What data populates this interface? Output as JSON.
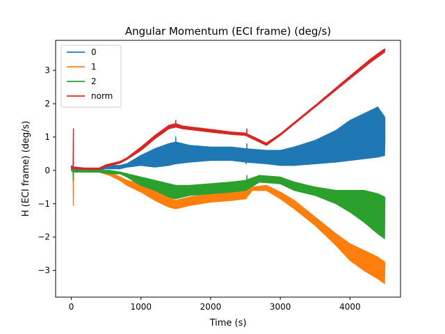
{
  "chart_data": {
    "type": "line",
    "title": "Angular Momentum (ECI frame) (deg/s)",
    "xlabel": "Time (s)",
    "ylabel": "H (ECI frame) (deg/s)",
    "xlim": [
      -225,
      4725
    ],
    "ylim": [
      -3.8,
      3.9
    ],
    "xticks": [
      0,
      1000,
      2000,
      3000,
      4000
    ],
    "yticks": [
      -3,
      -2,
      -1,
      0,
      1,
      2,
      3
    ],
    "xtick_labels": [
      "0",
      "1000",
      "2000",
      "3000",
      "4000"
    ],
    "ytick_labels": [
      "−3",
      "−2",
      "−1",
      "0",
      "1",
      "2",
      "3"
    ],
    "grid": false,
    "legend_position": "upper-left",
    "series": [
      {
        "name": "0",
        "color": "#1f77b4",
        "envelope": [
          [
            0,
            0.05,
            0.1
          ],
          [
            30,
            0.0,
            0.05
          ],
          [
            200,
            0.0,
            0.05
          ],
          [
            380,
            0.0,
            0.05
          ],
          [
            500,
            0.05,
            0.15
          ],
          [
            700,
            0.05,
            0.15
          ],
          [
            800,
            0.1,
            0.2
          ],
          [
            1000,
            0.15,
            0.45
          ],
          [
            1200,
            0.1,
            0.65
          ],
          [
            1400,
            0.15,
            0.8
          ],
          [
            1500,
            0.2,
            0.85
          ],
          [
            1700,
            0.25,
            0.75
          ],
          [
            2000,
            0.3,
            0.7
          ],
          [
            2300,
            0.3,
            0.7
          ],
          [
            2500,
            0.25,
            0.65
          ],
          [
            2800,
            0.2,
            0.6
          ],
          [
            3000,
            0.15,
            0.6
          ],
          [
            3200,
            0.15,
            0.7
          ],
          [
            3500,
            0.2,
            0.9
          ],
          [
            3800,
            0.25,
            1.2
          ],
          [
            4000,
            0.3,
            1.5
          ],
          [
            4200,
            0.35,
            1.7
          ],
          [
            4400,
            0.4,
            1.9
          ],
          [
            4500,
            0.45,
            1.6
          ]
        ],
        "spikes": [
          [
            1500,
            1.0
          ],
          [
            2510,
            0.2
          ],
          [
            2520,
            0.8
          ],
          [
            4500,
            0.95
          ]
        ]
      },
      {
        "name": "1",
        "color": "#ff7f0e",
        "envelope": [
          [
            0,
            0.0,
            0.05
          ],
          [
            30,
            -0.05,
            0.0
          ],
          [
            200,
            -0.05,
            0.0
          ],
          [
            400,
            -0.05,
            0.0
          ],
          [
            550,
            -0.15,
            -0.05
          ],
          [
            700,
            -0.3,
            -0.2
          ],
          [
            800,
            -0.45,
            -0.3
          ],
          [
            1000,
            -0.65,
            -0.4
          ],
          [
            1200,
            -0.9,
            -0.6
          ],
          [
            1400,
            -1.1,
            -0.8
          ],
          [
            1500,
            -1.15,
            -0.9
          ],
          [
            1700,
            -1.05,
            -0.8
          ],
          [
            2000,
            -0.95,
            -0.7
          ],
          [
            2300,
            -0.9,
            -0.65
          ],
          [
            2500,
            -0.85,
            -0.6
          ],
          [
            2600,
            -0.6,
            -0.5
          ],
          [
            2800,
            -0.6,
            -0.45
          ],
          [
            3000,
            -0.85,
            -0.65
          ],
          [
            3200,
            -1.15,
            -0.9
          ],
          [
            3500,
            -1.65,
            -1.4
          ],
          [
            3800,
            -2.25,
            -1.9
          ],
          [
            4000,
            -2.7,
            -2.2
          ],
          [
            4200,
            -3.0,
            -2.4
          ],
          [
            4400,
            -3.25,
            -2.6
          ],
          [
            4500,
            -3.4,
            -2.75
          ]
        ],
        "spikes": [
          [
            30,
            -1.05
          ],
          [
            2510,
            -0.85
          ],
          [
            2520,
            -0.25
          ]
        ]
      },
      {
        "name": "2",
        "color": "#2ca02c",
        "envelope": [
          [
            0,
            0.0,
            0.05
          ],
          [
            30,
            -0.05,
            0.0
          ],
          [
            200,
            -0.05,
            0.0
          ],
          [
            400,
            -0.05,
            0.0
          ],
          [
            550,
            -0.1,
            0.0
          ],
          [
            700,
            -0.1,
            -0.05
          ],
          [
            800,
            -0.2,
            -0.1
          ],
          [
            1000,
            -0.45,
            -0.2
          ],
          [
            1200,
            -0.6,
            -0.3
          ],
          [
            1400,
            -0.8,
            -0.4
          ],
          [
            1500,
            -0.85,
            -0.45
          ],
          [
            1700,
            -0.75,
            -0.45
          ],
          [
            2000,
            -0.7,
            -0.4
          ],
          [
            2300,
            -0.65,
            -0.35
          ],
          [
            2500,
            -0.6,
            -0.3
          ],
          [
            2700,
            -0.35,
            -0.15
          ],
          [
            3000,
            -0.4,
            -0.2
          ],
          [
            3200,
            -0.6,
            -0.35
          ],
          [
            3500,
            -0.75,
            -0.5
          ],
          [
            3800,
            -1.0,
            -0.6
          ],
          [
            4000,
            -1.25,
            -0.6
          ],
          [
            4200,
            -1.55,
            -0.6
          ],
          [
            4400,
            -1.9,
            -0.7
          ],
          [
            4500,
            -2.05,
            -0.8
          ]
        ],
        "spikes": [
          [
            30,
            -0.3
          ],
          [
            2510,
            -0.6
          ],
          [
            2520,
            -0.15
          ]
        ]
      },
      {
        "name": "norm",
        "color": "#d62728",
        "envelope": [
          [
            0,
            0.1,
            0.15
          ],
          [
            20,
            0.05,
            0.1
          ],
          [
            45,
            0.05,
            0.1
          ],
          [
            200,
            0.03,
            0.07
          ],
          [
            400,
            0.03,
            0.07
          ],
          [
            500,
            0.12,
            0.17
          ],
          [
            700,
            0.22,
            0.27
          ],
          [
            800,
            0.33,
            0.38
          ],
          [
            1000,
            0.6,
            0.7
          ],
          [
            1200,
            0.95,
            1.05
          ],
          [
            1400,
            1.25,
            1.35
          ],
          [
            1500,
            1.3,
            1.4
          ],
          [
            1600,
            1.25,
            1.33
          ],
          [
            2000,
            1.15,
            1.23
          ],
          [
            2300,
            1.08,
            1.15
          ],
          [
            2500,
            1.05,
            1.12
          ],
          [
            2600,
            0.95,
            1.02
          ],
          [
            2800,
            0.75,
            0.82
          ],
          [
            3000,
            1.05,
            1.1
          ],
          [
            3500,
            1.9,
            1.95
          ],
          [
            4000,
            2.75,
            2.83
          ],
          [
            4300,
            3.25,
            3.35
          ],
          [
            4500,
            3.55,
            3.65
          ]
        ],
        "spikes": [
          [
            30,
            1.25
          ],
          [
            1500,
            1.5
          ],
          [
            2510,
            1.1
          ],
          [
            2520,
            1.25
          ]
        ]
      }
    ]
  }
}
